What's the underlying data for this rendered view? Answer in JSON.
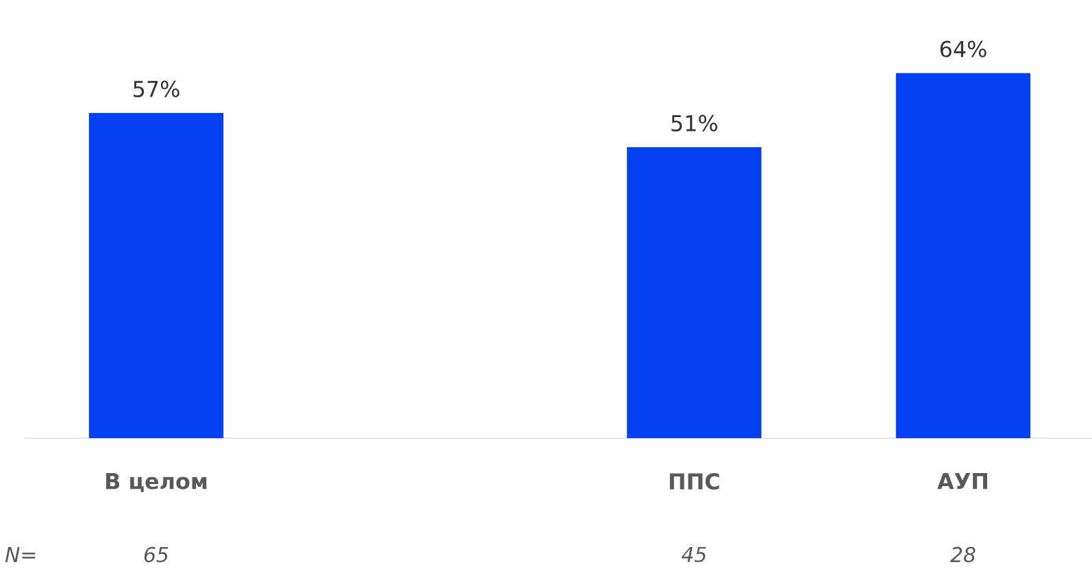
{
  "chart_data": {
    "type": "bar",
    "categories": [
      "В целом",
      null,
      "ППС",
      "АУП"
    ],
    "values": [
      57,
      null,
      51,
      64
    ],
    "value_labels": [
      "57%",
      null,
      "51%",
      "64%"
    ],
    "color": "#0540f2",
    "annotations": [
      "N=",
      "65",
      "45",
      "28"
    ]
  }
}
